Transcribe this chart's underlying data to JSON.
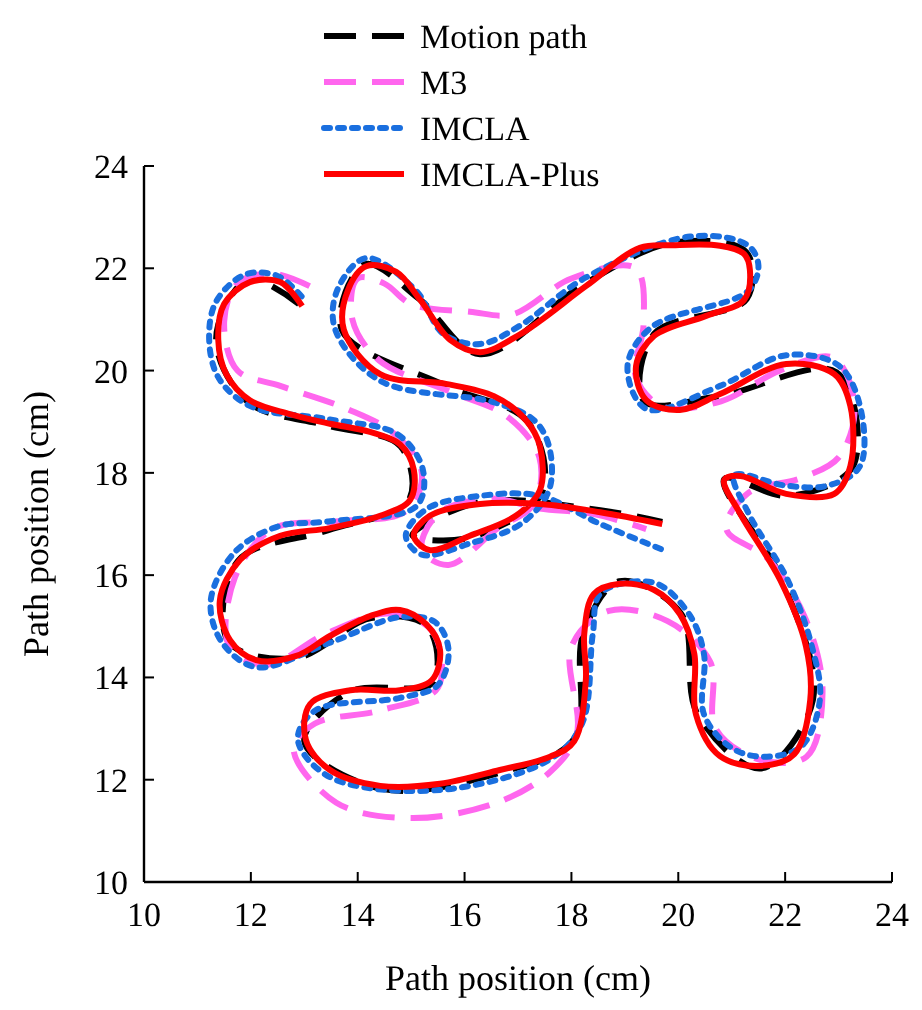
{
  "chart_data": {
    "type": "line",
    "xlabel": "Path position (cm)",
    "ylabel": "Path position (cm)",
    "xlim": [
      10,
      24
    ],
    "ylim": [
      10,
      24
    ],
    "xticks": [
      10,
      12,
      14,
      16,
      18,
      20,
      22,
      24
    ],
    "yticks": [
      10,
      12,
      14,
      16,
      18,
      20,
      22,
      24
    ],
    "grid": false,
    "legend": "top",
    "marker": "none",
    "series": [
      {
        "name": "Motion path",
        "color": "#000000",
        "line_style": "dashed",
        "x": [
          12.9,
          11.95,
          11.35,
          11.95,
          13.45,
          14.8,
          14.95,
          13.45,
          11.76,
          11.58,
          12.85,
          14.25,
          15.3,
          15.4,
          13.85,
          13.0,
          14.45,
          16.7,
          18.05,
          18.22,
          18.9,
          20.05,
          20.36,
          21.55,
          22.52,
          21.95,
          20.86,
          22.05,
          23.27,
          22.96,
          20.76,
          19.36,
          19.55,
          21.28,
          21.27,
          19.9,
          18.25,
          16.29,
          15.15,
          14.14,
          13.7,
          15.65,
          17.18,
          17.45,
          16.08,
          15.02,
          16.29,
          18.54,
          19.7
        ],
        "values": [
          21.3,
          21.78,
          20.62,
          19.38,
          18.92,
          18.52,
          17.45,
          16.88,
          16.28,
          14.7,
          14.38,
          15.16,
          15.0,
          13.9,
          13.72,
          12.75,
          11.82,
          12.15,
          12.8,
          14.85,
          15.88,
          15.25,
          13.28,
          12.22,
          13.56,
          15.88,
          17.88,
          17.55,
          18.13,
          19.97,
          19.5,
          19.4,
          20.72,
          21.4,
          22.32,
          22.5,
          21.7,
          20.32,
          21.4,
          22.08,
          20.8,
          19.7,
          19.0,
          17.62,
          16.73,
          16.78,
          17.43,
          17.27,
          17.04
        ]
      },
      {
        "name": "M3",
        "color": "#ff66ee",
        "line_style": "dashed",
        "x": [
          13.1,
          12.4,
          11.75,
          11.5,
          11.75,
          12.55,
          13.8,
          14.7,
          15.2,
          14.9,
          13.6,
          12.4,
          11.7,
          11.6,
          12.3,
          13.4,
          14.6,
          15.4,
          15.5,
          14.4,
          13.2,
          12.8,
          13.6,
          15.0,
          16.6,
          17.6,
          18.1,
          18.0,
          18.7,
          19.8,
          20.6,
          20.7,
          21.5,
          22.4,
          22.7,
          22.4,
          21.7,
          20.9,
          21.3,
          22.3,
          23.0,
          23.3,
          22.9,
          21.9,
          20.8,
          19.7,
          19.2,
          19.35,
          19.2,
          18.0,
          16.9,
          16.1,
          15.0,
          14.5,
          14.0,
          13.9,
          14.4,
          15.7,
          16.8,
          17.4,
          17.3,
          16.6,
          15.7,
          15.2,
          15.5,
          16.5,
          17.4,
          18.4,
          19.4
        ],
        "values": [
          21.65,
          21.9,
          21.7,
          20.95,
          20.0,
          19.7,
          19.25,
          18.75,
          18.0,
          17.25,
          17.05,
          16.9,
          15.95,
          14.6,
          14.25,
          14.85,
          15.25,
          14.9,
          13.8,
          13.35,
          13.1,
          12.6,
          11.55,
          11.25,
          11.55,
          12.15,
          12.9,
          14.6,
          15.3,
          15.1,
          14.3,
          13.0,
          12.4,
          12.45,
          13.7,
          15.1,
          16.3,
          16.9,
          17.6,
          17.9,
          18.3,
          19.3,
          20.25,
          20.0,
          19.4,
          19.3,
          19.9,
          20.9,
          22.0,
          21.8,
          21.1,
          21.15,
          21.3,
          21.7,
          21.8,
          21.0,
          20.2,
          19.6,
          19.1,
          18.3,
          17.4,
          16.9,
          16.2,
          16.5,
          17.2,
          17.5,
          17.3,
          17.2,
          16.9
        ]
      },
      {
        "name": "IMCLA",
        "color": "#1a6fdf",
        "line_style": "dotted",
        "x": [
          12.95,
          12.5,
          11.9,
          11.35,
          11.22,
          11.4,
          12.0,
          13.45,
          14.75,
          15.22,
          15.1,
          13.45,
          12.5,
          11.7,
          11.25,
          11.45,
          12.1,
          13.48,
          14.79,
          15.45,
          15.7,
          15.5,
          14.79,
          13.2,
          12.88,
          13.48,
          15.54,
          17.6,
          18.2,
          18.4,
          18.55,
          19.55,
          20.2,
          20.48,
          20.48,
          21.0,
          21.6,
          22.3,
          22.65,
          22.5,
          22.05,
          21.32,
          21.05,
          22.02,
          22.8,
          23.4,
          23.4,
          23.0,
          22.02,
          20.78,
          19.4,
          19.05,
          19.5,
          21.3,
          21.5,
          21.3,
          20.22,
          18.27,
          17.04,
          16.29,
          15.6,
          15.1,
          14.16,
          13.62,
          13.58,
          14.42,
          16.55,
          17.3,
          17.58,
          17.58,
          17.05,
          16.1,
          15.2,
          14.9,
          15.3,
          16.29,
          17.41,
          18.54,
          19.7
        ],
        "values": [
          21.45,
          21.85,
          21.88,
          21.35,
          20.6,
          19.85,
          19.3,
          19.05,
          18.75,
          18.06,
          17.35,
          17.05,
          16.95,
          16.45,
          15.51,
          14.7,
          14.2,
          14.68,
          15.18,
          15.08,
          14.54,
          13.85,
          13.6,
          13.35,
          12.78,
          12.05,
          11.8,
          12.4,
          13.1,
          14.85,
          15.65,
          15.85,
          15.24,
          14.46,
          13.28,
          12.62,
          12.45,
          12.65,
          13.56,
          14.61,
          15.9,
          17.2,
          17.95,
          17.75,
          17.75,
          18.13,
          19.31,
          20.1,
          20.3,
          19.7,
          19.25,
          20.09,
          20.85,
          21.55,
          22.05,
          22.45,
          22.62,
          21.82,
          20.88,
          20.52,
          20.72,
          21.55,
          22.2,
          21.58,
          20.8,
          19.8,
          19.38,
          19.03,
          18.52,
          17.66,
          17.0,
          16.62,
          16.4,
          16.77,
          17.3,
          17.55,
          17.55,
          17.0,
          16.5
        ]
      },
      {
        "name": "IMCLA-Plus",
        "color": "#ff0000",
        "line_style": "solid",
        "x": [
          12.96,
          12.55,
          11.98,
          11.5,
          11.39,
          11.54,
          11.98,
          12.73,
          13.48,
          14.23,
          14.79,
          15.05,
          14.98,
          14.42,
          13.48,
          12.55,
          11.8,
          11.42,
          11.61,
          12.1,
          12.85,
          13.48,
          14.23,
          14.79,
          15.28,
          15.54,
          15.39,
          14.79,
          13.86,
          13.11,
          13.03,
          13.48,
          14.42,
          15.54,
          16.66,
          17.6,
          18.05,
          18.27,
          18.24,
          18.42,
          18.91,
          19.55,
          20.03,
          20.3,
          20.33,
          20.78,
          21.53,
          22.17,
          22.47,
          22.39,
          21.91,
          21.16,
          20.86,
          21.16,
          22.02,
          22.92,
          23.22,
          23.22,
          22.92,
          22.02,
          20.78,
          20.03,
          19.4,
          19.21,
          19.55,
          20.52,
          21.23,
          21.34,
          21.23,
          20.78,
          19.9,
          19.28,
          18.27,
          17.04,
          16.29,
          15.73,
          15.17,
          14.72,
          14.16,
          13.82,
          13.74,
          14.42,
          15.65,
          16.55,
          17.15,
          17.41,
          17.41,
          16.96,
          16.1,
          15.35,
          15.05,
          15.35,
          16.29,
          17.41,
          18.54,
          19.7
        ],
        "values": [
          21.26,
          21.73,
          21.73,
          21.3,
          20.6,
          19.93,
          19.42,
          19.15,
          18.96,
          18.8,
          18.56,
          18.06,
          17.47,
          17.16,
          16.92,
          16.77,
          16.3,
          15.51,
          14.73,
          14.34,
          14.42,
          14.81,
          15.2,
          15.32,
          15.04,
          14.54,
          13.95,
          13.75,
          13.75,
          13.48,
          12.78,
          12.19,
          11.88,
          11.92,
          12.19,
          12.45,
          12.75,
          13.95,
          14.85,
          15.63,
          15.83,
          15.71,
          15.24,
          14.46,
          13.28,
          12.46,
          12.27,
          12.5,
          13.56,
          14.61,
          15.9,
          17.2,
          17.86,
          17.94,
          17.59,
          17.59,
          18.13,
          19.31,
          19.93,
          20.13,
          19.54,
          19.23,
          19.42,
          20.09,
          20.68,
          21.07,
          21.38,
          21.97,
          22.28,
          22.44,
          22.45,
          22.4,
          21.65,
          20.71,
          20.36,
          20.6,
          21.38,
          21.93,
          22.04,
          21.58,
          20.8,
          19.93,
          19.74,
          19.5,
          19.03,
          18.52,
          17.66,
          17.16,
          16.77,
          16.49,
          16.77,
          17.16,
          17.39,
          17.39,
          17.23,
          17.0
        ]
      }
    ]
  }
}
